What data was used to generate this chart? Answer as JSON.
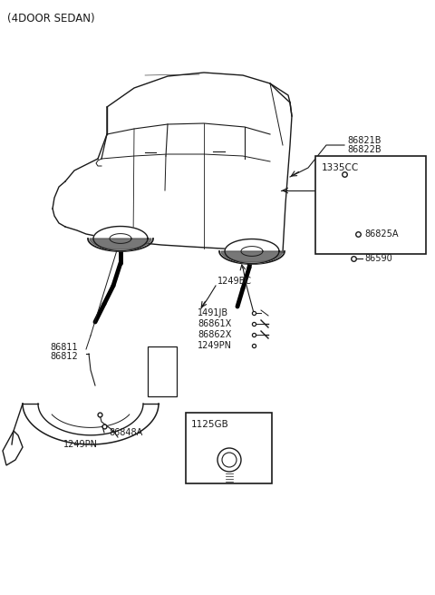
{
  "title": "(4DOOR SEDAN)",
  "bg_color": "#ffffff",
  "line_color": "#1a1a1a",
  "text_color": "#1a1a1a",
  "fig_width": 4.8,
  "fig_height": 6.56,
  "dpi": 100,
  "labels": {
    "top_left": "(4DOOR SEDAN)",
    "lbl_86811": "86811",
    "lbl_86812": "86812",
    "lbl_86848A": "86848A",
    "lbl_1249PN_bottom": "1249PN",
    "lbl_1491JB": "1491JB",
    "lbl_86861X": "86861X",
    "lbl_86862X": "86862X",
    "lbl_1249PN_mid": "1249PN",
    "lbl_1249BC": "1249BC",
    "lbl_86821B": "86821B",
    "lbl_86822B": "86822B",
    "lbl_1335CC": "1335CC",
    "lbl_86825A": "86825A",
    "lbl_86590": "86590",
    "lbl_1125GB": "1125GB"
  }
}
